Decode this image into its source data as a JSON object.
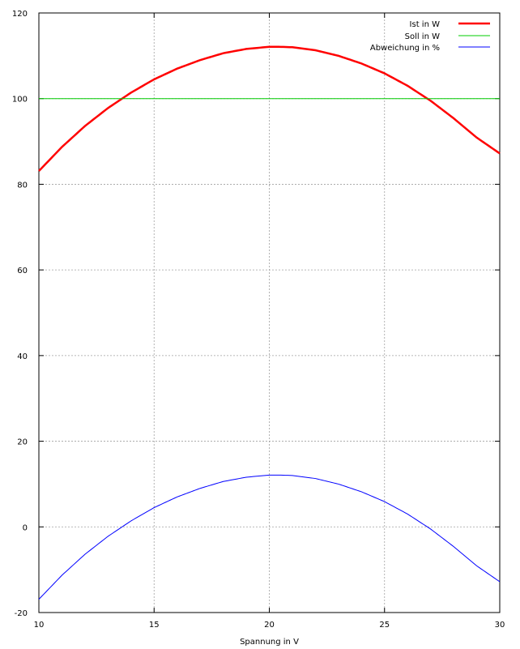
{
  "chart_data": {
    "type": "line",
    "title": "",
    "xlabel": "Spannung in V",
    "ylabel": "",
    "xlim": [
      10,
      30
    ],
    "ylim": [
      -20,
      120
    ],
    "xticks": [
      10,
      15,
      20,
      25,
      30
    ],
    "yticks": [
      -20,
      0,
      20,
      40,
      60,
      80,
      100,
      120
    ],
    "grid": true,
    "legend_position": "top-right",
    "series": [
      {
        "name": "Ist in W",
        "color": "#ff0000",
        "x": [
          10,
          11,
          12,
          13,
          14,
          15,
          16,
          17,
          18,
          19,
          20,
          20.4,
          21,
          22,
          23,
          24,
          25,
          26,
          27,
          28,
          29,
          30
        ],
        "y": [
          83.1,
          88.7,
          93.6,
          97.8,
          101.4,
          104.5,
          107,
          109,
          110.6,
          111.6,
          112.1,
          112.1,
          112,
          111.3,
          110,
          108.2,
          105.9,
          103,
          99.5,
          95.4,
          90.9,
          87.2
        ]
      },
      {
        "name": "Soll in W",
        "color": "#00cc00",
        "x": [
          10,
          30
        ],
        "y": [
          100,
          100
        ]
      },
      {
        "name": "Abweichung in %",
        "color": "#0000ff",
        "x": [
          10,
          11,
          12,
          13,
          14,
          15,
          16,
          17,
          18,
          19,
          20,
          20.4,
          21,
          22,
          23,
          24,
          25,
          26,
          27,
          28,
          29,
          30
        ],
        "y": [
          -16.9,
          -11.3,
          -6.4,
          -2.2,
          1.4,
          4.5,
          7,
          9,
          10.6,
          11.6,
          12.1,
          12.1,
          12,
          11.3,
          10,
          8.2,
          5.9,
          3,
          -0.5,
          -4.6,
          -9.1,
          -12.8
        ]
      }
    ]
  }
}
